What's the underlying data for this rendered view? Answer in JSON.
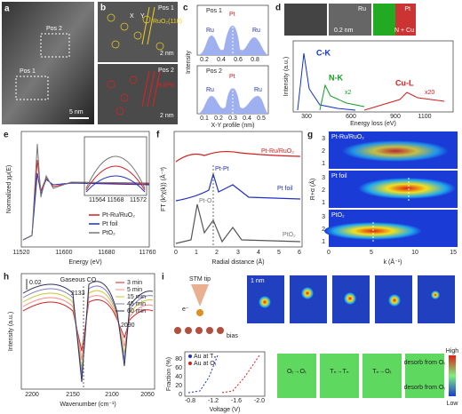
{
  "panels": {
    "a": {
      "label": "a",
      "pos2": "Pos 2",
      "pos1": "Pos 1",
      "scale": "5 nm"
    },
    "b": {
      "label": "b",
      "top": {
        "pos": "Pos 1",
        "plane": "RuO₂(110)",
        "x": "X",
        "y": "Y",
        "scale": "2 nm"
      },
      "bottom": {
        "pos": "Pos 2",
        "plane": "Ru(Pt)",
        "scale": "2 nm"
      }
    },
    "c": {
      "label": "c",
      "ylabel": "Intensity",
      "xlabel": "X-Y profile (nm)",
      "top": {
        "pos": "Pos 1",
        "peaks": [
          "Ru",
          "Pt",
          "Ru"
        ],
        "xticks": [
          "0.2",
          "0.4",
          "0.6",
          "0.8"
        ]
      },
      "bottom": {
        "pos": "Pos 2",
        "peaks": [
          "Ru",
          "Pt",
          "Ru"
        ],
        "xticks": [
          "0.1",
          "0.2",
          "0.3",
          "0.4",
          "0.5"
        ]
      }
    },
    "d": {
      "label": "d",
      "scale": "0.2 nm",
      "maps": [
        "Pt",
        "Ru",
        "N + Cu"
      ],
      "edges": [
        "C-K",
        "N-K",
        "Cu-L"
      ],
      "mult": [
        "x2",
        "x20"
      ],
      "ylabel": "Intensity (a.u.)",
      "xlabel": "Energy loss (eV)",
      "xticks": [
        "300",
        "600",
        "900",
        "1100"
      ]
    },
    "e": {
      "label": "e",
      "ylabel": "Normalized χμ(E)",
      "xlabel": "Energy (eV)",
      "xticks": [
        "11520",
        "11600",
        "11680",
        "11760"
      ],
      "inset_xticks": [
        "11564",
        "11568",
        "11572"
      ],
      "legend": [
        "Pt-Ru/RuO₂",
        "Pt foil",
        "PtO₂"
      ]
    },
    "f": {
      "label": "f",
      "ylabel": "FT (k²χ(k)) (Å⁻³)",
      "xlabel": "Radial distance (Å)",
      "xticks": [
        "0",
        "1",
        "2",
        "3",
        "4",
        "5",
        "6"
      ],
      "curves": [
        "Pt-Ru/RuO₂",
        "Pt foil",
        "PtO₂"
      ],
      "peaks": [
        "Pt-Pt",
        "Pt-O"
      ]
    },
    "g": {
      "label": "g",
      "maps": [
        "Pt-Ru/RuO₂",
        "Pt foil",
        "PtO₂"
      ],
      "ylabel": "R+α (Å)",
      "yticks": [
        "1",
        "2",
        "3"
      ],
      "xlabel": "k (Å⁻¹)",
      "xticks": [
        "0",
        "5",
        "10",
        "15"
      ]
    },
    "h": {
      "label": "h",
      "scale": "0.02",
      "gas": "Gaseous CO",
      "peaks": [
        "2133",
        "2090"
      ],
      "ylabel": "Intensity (a.u.)",
      "xlabel": "Wavenumber (cm⁻¹)",
      "xticks": [
        "2200",
        "2150",
        "2100",
        "2050"
      ],
      "legend": [
        "3 min",
        "5 min",
        "15 min",
        "45 min",
        "60 min"
      ]
    },
    "i": {
      "label": "i",
      "tip": "STM tip",
      "electron": "e⁻",
      "bias": "bias",
      "scale": "1 nm",
      "ylabel": "Fraction (%)",
      "xlabel": "Voltage (V)",
      "xticks": [
        "-0.8",
        "-1.2",
        "-1.6",
        "-2.0"
      ],
      "yticks": [
        "0",
        "20",
        "40",
        "60",
        "80"
      ],
      "legend": [
        "Au at Tₙ",
        "Au at Oₜ"
      ],
      "colorbar": [
        "High",
        "Low"
      ],
      "notes": [
        "Oₜ→Oₜ",
        "Tₙ→Tₙ",
        "Tₙ→Oₜ",
        "desorb from Oₜ",
        "desorb from Oₜ"
      ]
    }
  }
}
